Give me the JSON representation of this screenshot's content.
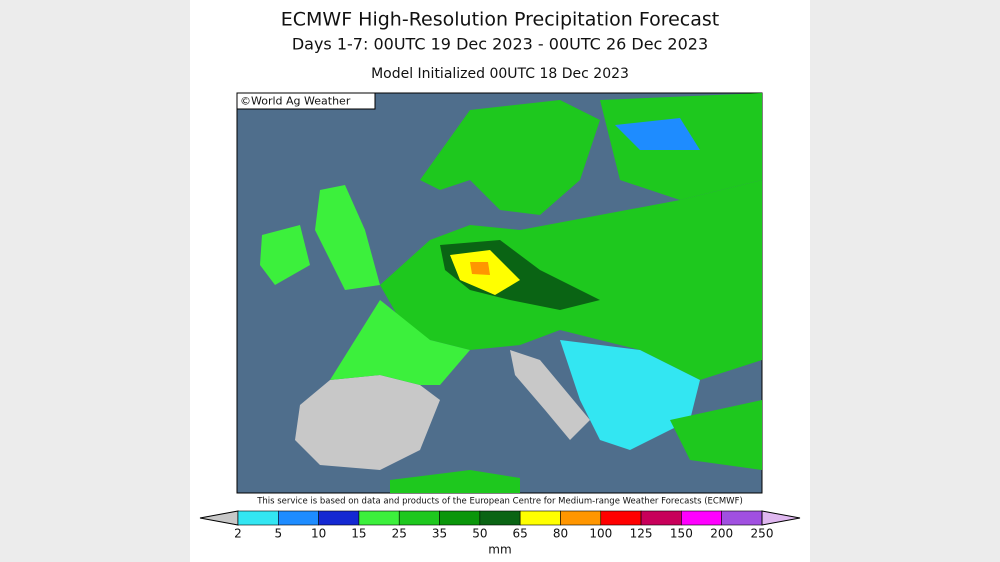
{
  "header": {
    "title": "ECMWF High-Resolution Precipitation Forecast",
    "period": "Days 1-7: 00UTC 19 Dec 2023 - 00UTC 26 Dec 2023",
    "initialized": "Model Initialized 00UTC 18 Dec 2023"
  },
  "map": {
    "credit": "©World Ag Weather"
  },
  "footer": {
    "disclaimer": "This service is based on data and products of the European Centre for Medium-range Weather Forecasts (ECMWF)"
  },
  "legend": {
    "ticks": [
      2,
      5,
      10,
      15,
      25,
      35,
      50,
      65,
      80,
      100,
      125,
      150,
      200,
      250
    ],
    "colors": [
      "#c8c8c8",
      "#33e6f2",
      "#1e8cff",
      "#1428d2",
      "#3cf03c",
      "#1ec81e",
      "#0a960a",
      "#0a6414",
      "#ffff00",
      "#ff9600",
      "#ff0000",
      "#c8005a",
      "#ff00ff",
      "#a050e0",
      "#e0b8f0"
    ],
    "unit": "mm"
  }
}
